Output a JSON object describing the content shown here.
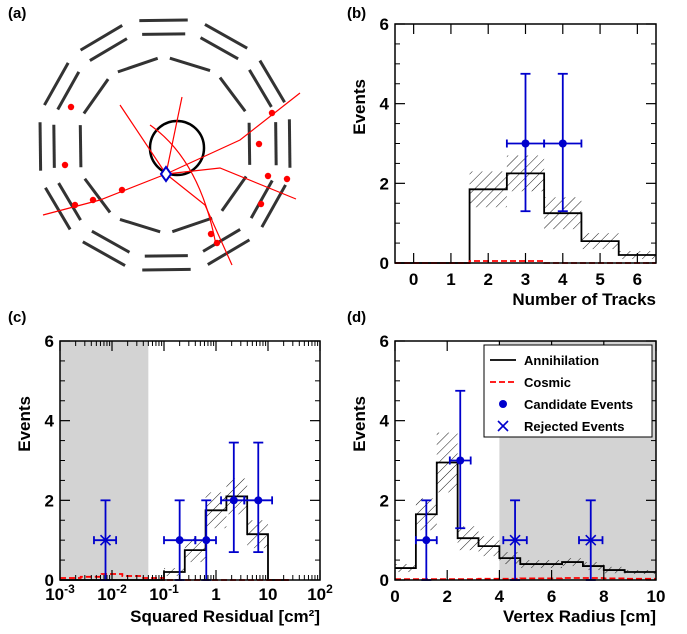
{
  "panel_labels": [
    "(a)",
    "(b)",
    "(c)",
    "(d)"
  ],
  "colors": {
    "mc": "#000000",
    "cosmic": "#ff0000",
    "data": "#0000cc",
    "excluded": "#d3d3d3",
    "tracks": "#ff0000",
    "detector": "#333333"
  },
  "chart_data": [
    {
      "panel": "(b)",
      "type": "bar",
      "xlabel": "Number of Tracks",
      "ylabel": "Events",
      "x_ticks": [
        "0",
        "1",
        "2",
        "3",
        "4",
        "5",
        "6"
      ],
      "y_ticks": [
        "0",
        "2",
        "4",
        "6"
      ],
      "xlim": [
        -0.5,
        6.5
      ],
      "ylim": [
        0,
        6
      ],
      "annihilation": {
        "bin_edges": [
          -0.5,
          0.5,
          1.5,
          2.5,
          3.5,
          4.5,
          5.5,
          6.5
        ],
        "values": [
          0,
          0,
          1.85,
          2.25,
          1.25,
          0.55,
          0.2
        ],
        "errors": [
          0,
          0,
          0.45,
          0.45,
          0.4,
          0.2,
          0.1
        ]
      },
      "cosmic": {
        "bin_edges": [
          -0.5,
          0.5,
          1.5,
          2.5,
          3.5,
          4.5,
          5.5,
          6.5
        ],
        "values": [
          0,
          0,
          0.05,
          0.05,
          0,
          0,
          0
        ]
      },
      "candidates": [
        {
          "x": 3,
          "y": 3,
          "ylo": 1.3,
          "yhi": 4.75,
          "xerr": 0.5
        },
        {
          "x": 4,
          "y": 3,
          "ylo": 1.3,
          "yhi": 4.75,
          "xerr": 0.5
        }
      ],
      "rejected": []
    },
    {
      "panel": "(c)",
      "type": "bar",
      "xlabel": "Squared Residual [cm²]",
      "ylabel": "Events",
      "xscale": "log",
      "x_ticks": [
        0.001,
        0.01,
        0.1,
        1,
        10,
        100
      ],
      "y_ticks": [
        "0",
        "2",
        "4",
        "6"
      ],
      "xlim": [
        0.001,
        100
      ],
      "ylim": [
        0,
        6
      ],
      "excluded_regions": [
        [
          0.001,
          0.05
        ]
      ],
      "annihilation": {
        "bin_edges": [
          0.001,
          0.0025,
          0.00631,
          0.0158,
          0.0398,
          0.1,
          0.251,
          0.631,
          1.585,
          3.98,
          10,
          25.1
        ],
        "values": [
          0,
          0,
          0,
          0,
          0,
          0.2,
          0.75,
          1.75,
          2.1,
          1.15,
          0
        ],
        "errors": [
          0,
          0,
          0,
          0,
          0,
          0.1,
          0.3,
          0.45,
          0.45,
          0.35,
          0
        ]
      },
      "cosmic": {
        "bin_edges": [
          0.001,
          0.0025,
          0.00631,
          0.0158,
          0.0398,
          0.1,
          0.251,
          0.631,
          1.585,
          3.98,
          10,
          25.1
        ],
        "values": [
          0.05,
          0.08,
          0.15,
          0.1,
          0.05,
          0,
          0,
          0,
          0,
          0,
          0
        ]
      },
      "candidates": [
        {
          "x": 0.2,
          "y": 1,
          "ylo": 0,
          "yhi": 2,
          "xlo": 0.1,
          "xhi": 0.4
        },
        {
          "x": 0.65,
          "y": 1,
          "ylo": 0,
          "yhi": 2,
          "xlo": 0.4,
          "xhi": 1.0
        },
        {
          "x": 2.2,
          "y": 2,
          "ylo": 0.7,
          "yhi": 3.45,
          "xlo": 1.25,
          "xhi": 3.5
        },
        {
          "x": 6.5,
          "y": 2,
          "ylo": 0.7,
          "yhi": 3.45,
          "xlo": 3.5,
          "xhi": 12
        }
      ],
      "rejected": [
        {
          "x": 0.0075,
          "y": 1,
          "ylo": 0,
          "yhi": 2,
          "xlo": 0.0045,
          "xhi": 0.012
        }
      ]
    },
    {
      "panel": "(d)",
      "type": "bar",
      "xlabel": "Vertex Radius [cm]",
      "ylabel": "Events",
      "x_ticks": [
        "0",
        "2",
        "4",
        "6",
        "8",
        "10"
      ],
      "y_ticks": [
        "0",
        "2",
        "4",
        "6"
      ],
      "xlim": [
        0,
        10
      ],
      "ylim": [
        0,
        6
      ],
      "excluded_regions": [
        [
          4,
          10
        ]
      ],
      "annihilation": {
        "bin_edges": [
          0,
          0.8,
          1.6,
          2.4,
          3.2,
          4.0,
          4.8,
          5.6,
          6.4,
          7.2,
          8.0,
          8.8,
          10
        ],
        "values": [
          0.3,
          1.65,
          2.95,
          1.05,
          0.85,
          0.55,
          0.4,
          0.4,
          0.45,
          0.35,
          0.25,
          0.2
        ],
        "errors": [
          0.1,
          0.4,
          0.75,
          0.3,
          0.25,
          0.15,
          0.1,
          0.1,
          0.1,
          0.1,
          0.08,
          0.05
        ]
      },
      "cosmic": {
        "bin_edges": [
          0,
          0.8,
          1.6,
          2.4,
          3.2,
          4.0,
          4.8,
          5.6,
          6.4,
          7.2,
          8.0,
          8.8,
          10
        ],
        "values": [
          0.02,
          0.02,
          0.02,
          0.02,
          0.03,
          0.03,
          0.04,
          0.04,
          0.05,
          0.05,
          0.04,
          0.03
        ]
      },
      "candidates": [
        {
          "x": 1.2,
          "y": 1,
          "ylo": 0,
          "yhi": 2,
          "xerr": 0.4
        },
        {
          "x": 2.5,
          "y": 3,
          "ylo": 1.3,
          "yhi": 4.75,
          "xerr": 0.4
        }
      ],
      "rejected": [
        {
          "x": 4.6,
          "y": 1,
          "ylo": 0,
          "yhi": 2,
          "xerr": 0.45
        },
        {
          "x": 7.5,
          "y": 1,
          "ylo": 0,
          "yhi": 2,
          "xerr": 0.45
        }
      ],
      "legend": {
        "placement": "top-right",
        "entries": [
          "Annihilation",
          "Cosmic",
          "Candidate Events",
          "Rejected Events"
        ]
      }
    }
  ]
}
